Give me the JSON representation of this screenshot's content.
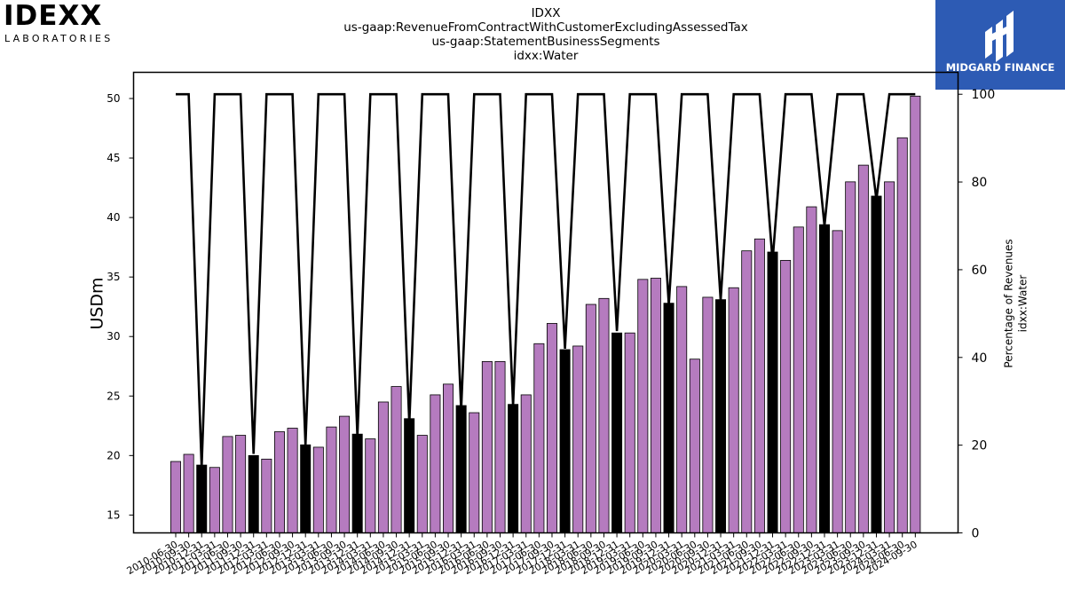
{
  "header": {
    "title_lines": [
      "IDXX",
      "us-gaap:RevenueFromContractWithCustomerExcludingAssessedTax",
      "us-gaap:StatementBusinessSegments",
      "idxx:Water"
    ]
  },
  "logos": {
    "company": {
      "line1": "IDEXX",
      "line2": "LABORATORIES"
    },
    "watermark": {
      "name": "MIDGARD FINANCE",
      "icon": "midgard-m-icon"
    }
  },
  "colors": {
    "quarterly_bar": "#b57bbf",
    "annual_bar": "#000000",
    "percent_line": "#000000"
  },
  "chart_data": {
    "type": "bar",
    "xlabel": "",
    "ylabel": "USDm",
    "y2label_lines": [
      "Percentage of Revenues",
      "idxx:Water"
    ],
    "ylim": [
      13.5,
      52.2
    ],
    "y2lim": [
      0,
      105
    ],
    "yticks": [
      15,
      20,
      25,
      30,
      35,
      40,
      45,
      50
    ],
    "y2ticks": [
      0,
      20,
      40,
      60,
      80,
      100
    ],
    "tick_labels": [
      "2010-06-30",
      "2010-09-30",
      "2010-12-31",
      "2011-03-31",
      "2011-06-30",
      "2011-09-30",
      "2011-12-31",
      "2012-03-31",
      "2012-06-30",
      "2012-09-30",
      "2012-12-31",
      "2013-03-31",
      "2013-06-30",
      "2013-09-30",
      "2013-12-31",
      "2014-03-31",
      "2014-06-30",
      "2014-09-30",
      "2014-12-31",
      "2015-03-31",
      "2015-06-30",
      "2015-09-30",
      "2015-12-31",
      "2016-03-31",
      "2016-06-30",
      "2016-09-30",
      "2016-12-31",
      "2017-03-31",
      "2017-06-30",
      "2017-09-30",
      "2017-12-31",
      "2018-03-31",
      "2018-06-30",
      "2018-09-30",
      "2018-12-31",
      "2019-03-31",
      "2019-06-30",
      "2019-09-30",
      "2019-12-31",
      "2020-03-31",
      "2020-06-30",
      "2020-09-30",
      "2020-12-31",
      "2021-03-31",
      "2021-06-30",
      "2021-09-30",
      "2021-12-31",
      "2022-03-31",
      "2022-06-30",
      "2022-09-30",
      "2022-12-31",
      "2023-03-31",
      "2023-06-30",
      "2023-09-30",
      "2023-12-31",
      "2024-03-31",
      "2024-06-30",
      "2024-09-30"
    ],
    "series": [
      {
        "values": [
          19.5,
          20.1,
          19.2,
          19.0,
          21.6,
          21.7,
          20.0,
          19.7,
          22.0,
          22.3,
          20.9,
          20.7,
          22.4,
          23.3,
          21.8,
          21.4,
          24.5,
          25.8,
          23.1,
          21.7,
          25.1,
          26.0,
          24.2,
          23.6,
          27.9,
          27.9,
          24.3,
          25.1,
          29.4,
          31.1,
          28.9,
          29.2,
          32.7,
          33.2,
          30.3,
          30.3,
          34.8,
          34.9,
          32.8,
          34.2,
          28.1,
          33.3,
          33.1,
          34.1,
          37.2,
          38.2,
          37.1,
          36.4,
          39.2,
          40.9,
          39.4,
          38.9,
          43.0,
          44.4,
          41.8,
          43.0,
          46.7,
          50.2
        ]
      },
      {
        "values": [
          100,
          100,
          15,
          100,
          100,
          100,
          18,
          100,
          100,
          100,
          20,
          100,
          100,
          100,
          22,
          100,
          100,
          100,
          25,
          100,
          100,
          100,
          28,
          100,
          100,
          100,
          29,
          100,
          100,
          100,
          42,
          100,
          100,
          100,
          46,
          100,
          100,
          100,
          52,
          100,
          100,
          100,
          53,
          100,
          100,
          100,
          62,
          100,
          100,
          100,
          70,
          100,
          100,
          100,
          76,
          100,
          100,
          100
        ]
      }
    ]
  }
}
